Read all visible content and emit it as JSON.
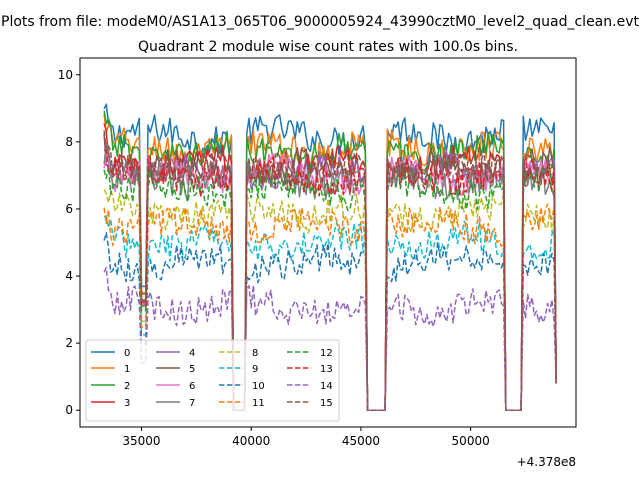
{
  "chart_data": {
    "type": "line",
    "suptitle": "Plots from file: modeM0/AS1A13_065T06_9000005924_43990cztM0_level2_quad_clean.evt",
    "title": "Quadrant 2 module wise count rates with 100.0s bins.",
    "xlabel": "",
    "ylabel": "",
    "x_offset_label": "+4.378e8",
    "xlim": [
      32200,
      54800
    ],
    "ylim": [
      -0.5,
      10.5
    ],
    "x_ticks": [
      35000,
      40000,
      45000,
      50000
    ],
    "y_ticks": [
      0,
      2,
      4,
      6,
      8,
      10
    ],
    "grid": false,
    "legend_position": "lower-left",
    "legend_columns": 4,
    "x_range": [
      33300,
      53900
    ],
    "bin_seconds": 100,
    "gaps": [
      {
        "start": 35000,
        "end": 35250,
        "min": 3.5
      },
      {
        "start": 39200,
        "end": 39700,
        "min": 0
      },
      {
        "start": 45300,
        "end": 46150,
        "min": 0
      },
      {
        "start": 51600,
        "end": 52300,
        "min": 0
      }
    ],
    "series": [
      {
        "name": "0",
        "color": "#1f77b4",
        "dash": "solid",
        "level": 8.2
      },
      {
        "name": "1",
        "color": "#ff7f0e",
        "dash": "solid",
        "level": 7.8
      },
      {
        "name": "2",
        "color": "#2ca02c",
        "dash": "solid",
        "level": 7.7
      },
      {
        "name": "3",
        "color": "#d62728",
        "dash": "solid",
        "level": 7.3
      },
      {
        "name": "4",
        "color": "#9467bd",
        "dash": "solid",
        "level": 7.1
      },
      {
        "name": "5",
        "color": "#8c564b",
        "dash": "solid",
        "level": 7.2
      },
      {
        "name": "6",
        "color": "#e377c2",
        "dash": "solid",
        "level": 7.0
      },
      {
        "name": "7",
        "color": "#7f7f7f",
        "dash": "solid",
        "level": 6.9
      },
      {
        "name": "8",
        "color": "#bcbd22",
        "dash": "dashed",
        "level": 5.9
      },
      {
        "name": "9",
        "color": "#17becf",
        "dash": "dashed",
        "level": 5.0
      },
      {
        "name": "10",
        "color": "#1f77b4",
        "dash": "dashed",
        "level": 4.4
      },
      {
        "name": "11",
        "color": "#ff7f0e",
        "dash": "dashed",
        "level": 5.5
      },
      {
        "name": "12",
        "color": "#2ca02c",
        "dash": "dashed",
        "level": 6.6
      },
      {
        "name": "13",
        "color": "#d62728",
        "dash": "dashed",
        "level": 7.0
      },
      {
        "name": "14",
        "color": "#9467bd",
        "dash": "dashed",
        "level": 3.1
      },
      {
        "name": "15",
        "color": "#8c564b",
        "dash": "dashed",
        "level": 7.2
      }
    ]
  }
}
